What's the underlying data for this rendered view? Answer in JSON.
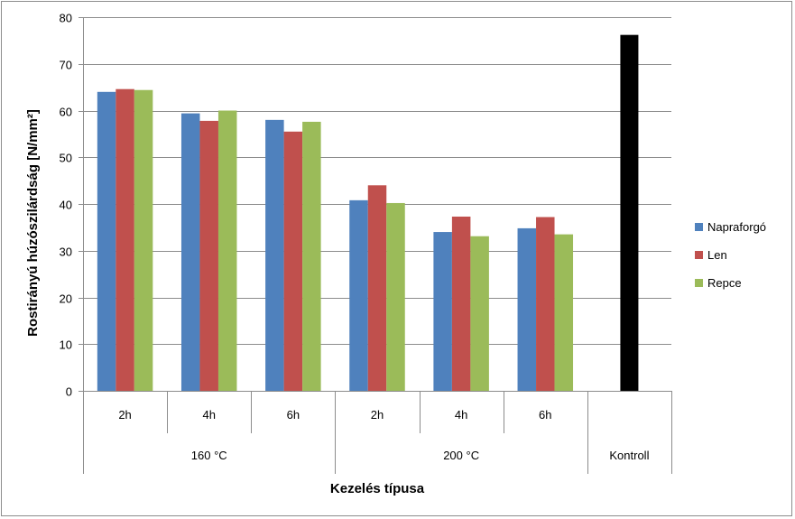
{
  "chart_data": {
    "type": "bar",
    "title": "",
    "xlabel": "Kezelés típusa",
    "ylabel": "Rostirányú húzószilárdság [N/mm²]",
    "ylim": [
      0,
      80
    ],
    "y_ticks": [
      0,
      10,
      20,
      30,
      40,
      50,
      60,
      70,
      80
    ],
    "grid": true,
    "legend_position": "right",
    "categories": [
      "2h",
      "4h",
      "6h",
      "2h",
      "4h",
      "6h",
      ""
    ],
    "groups": [
      {
        "label": "160 °C",
        "span": [
          0,
          2
        ]
      },
      {
        "label": "200 °C",
        "span": [
          3,
          5
        ]
      },
      {
        "label": "Kontroll",
        "span": [
          6,
          6
        ]
      }
    ],
    "series": [
      {
        "name": "Napraforgó",
        "color": "#4f81bd",
        "values": [
          64,
          59.4,
          58,
          40.8,
          34,
          34.8,
          null
        ]
      },
      {
        "name": "Len",
        "color": "#c0504d",
        "values": [
          64.6,
          57.8,
          55.5,
          44,
          37.3,
          37.2,
          null
        ]
      },
      {
        "name": "Repce",
        "color": "#9bbb59",
        "values": [
          64.4,
          60,
          57.6,
          40.2,
          33.1,
          33.5,
          null
        ]
      }
    ],
    "control": {
      "category_index": 6,
      "value": 76.2,
      "color": "#000000"
    }
  }
}
